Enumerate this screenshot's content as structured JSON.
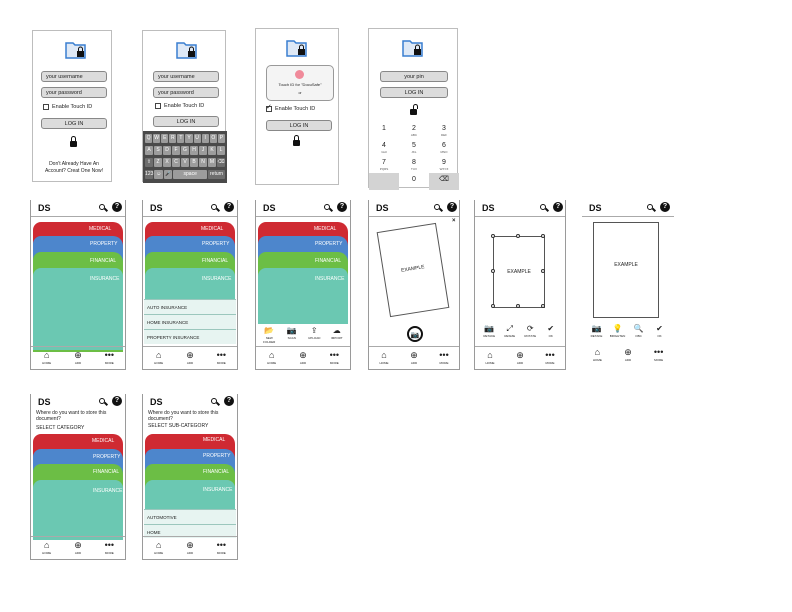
{
  "colors": {
    "medical": "#cf2a32",
    "property": "#4d86cc",
    "financial": "#6cbe45",
    "insurance": "#6bc8b2",
    "folder": "#3a7fd0"
  },
  "icons": {
    "folder": "folder-lock-icon",
    "search": "search-icon",
    "help": "help-icon",
    "home": "home-icon",
    "add": "add-icon",
    "more": "more-icon",
    "lock": "lock-icon",
    "unlock": "unlock-icon",
    "camera": "camera-icon"
  },
  "brand": "DS",
  "login1": {
    "username": "your username",
    "password": "your password",
    "touch_id": "Enable Touch ID",
    "login": "LOG IN",
    "signup": "Don't Already Have An Account? Creat One Now!"
  },
  "login2": {
    "username": "your username",
    "password": "your password",
    "touch_id": "Enable Touch ID",
    "login": "LOG IN",
    "keyboard_rows": [
      [
        "Q",
        "W",
        "E",
        "R",
        "T",
        "Y",
        "U",
        "I",
        "O",
        "P"
      ],
      [
        "A",
        "S",
        "D",
        "F",
        "G",
        "H",
        "J",
        "K",
        "L"
      ],
      [
        "⇧",
        "Z",
        "X",
        "C",
        "V",
        "B",
        "N",
        "M",
        "⌫"
      ],
      [
        "123",
        "☺",
        "🎤",
        "space",
        "return"
      ]
    ]
  },
  "login3": {
    "dialog": "Touch ID for \"DocuSafe\"",
    "dialog_sub": "or",
    "touch_id": "Enable Touch ID",
    "login": "LOG IN"
  },
  "login4": {
    "pin": "your pin",
    "login": "LOG IN",
    "keys": [
      {
        "n": "1",
        "l": ""
      },
      {
        "n": "2",
        "l": "ABC"
      },
      {
        "n": "3",
        "l": "DEF"
      },
      {
        "n": "4",
        "l": "GHI"
      },
      {
        "n": "5",
        "l": "JKL"
      },
      {
        "n": "6",
        "l": "MNO"
      },
      {
        "n": "7",
        "l": "PQRS"
      },
      {
        "n": "8",
        "l": "TUV"
      },
      {
        "n": "9",
        "l": "WXYZ"
      },
      {
        "n": "",
        "l": ""
      },
      {
        "n": "0",
        "l": ""
      },
      {
        "n": "⌫",
        "l": ""
      }
    ]
  },
  "tabs": {
    "medical": "MEDICAL",
    "property": "PROPERTY",
    "financial": "FINANCIAL",
    "insurance": "INSURANCE"
  },
  "nav": {
    "home": "HOME",
    "add": "ADD",
    "more": "MORE",
    "home_g": "⌂",
    "add_g": "⊕",
    "more_g": "•••"
  },
  "insurance_list": [
    "AUTO INSURANCE",
    "HOME INSURANCE",
    "PROPERTY INSURANCE"
  ],
  "add_actions": [
    {
      "g": "📂",
      "l": "NEW FOLDER"
    },
    {
      "g": "📷",
      "l": "SCAN"
    },
    {
      "g": "⇪",
      "l": "UPLOAD"
    },
    {
      "g": "☁",
      "l": "IMPORT"
    }
  ],
  "scan": {
    "example": "EXAMPLE",
    "close": "×",
    "camera": "📷"
  },
  "crop_tools": [
    {
      "g": "📷",
      "l": "RETAKE"
    },
    {
      "g": "⤢",
      "l": "RESIZE"
    },
    {
      "g": "⟳",
      "l": "ROTATE"
    },
    {
      "g": "✔",
      "l": "OK"
    }
  ],
  "final_tools": [
    {
      "g": "📷",
      "l": "RETAKE"
    },
    {
      "g": "💡",
      "l": "BRIGHTEN"
    },
    {
      "g": "🔍",
      "l": "OBC"
    },
    {
      "g": "✔",
      "l": "OK"
    }
  ],
  "save1": {
    "question": "Where do you want to store this document?",
    "sub": "SELECT CATEGORY"
  },
  "save2": {
    "question": "Where do you want to store this document?",
    "sub": "SELECT SUB-CATEGORY",
    "list": [
      "AUTOMOTIVE",
      "HOME"
    ]
  }
}
